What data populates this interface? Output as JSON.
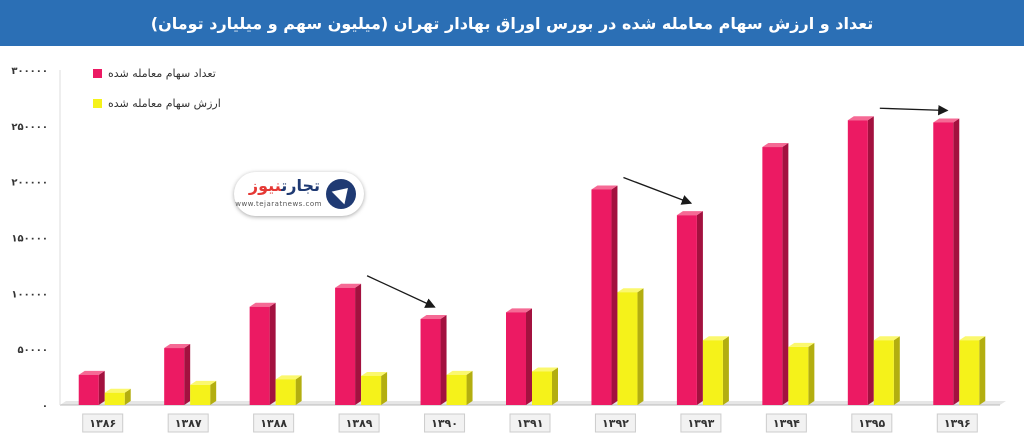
{
  "title": "تعداد و ارزش سهام معامله شده در بورس اوراق بهادار تهران (میلیون سهم و میلیارد تومان)",
  "logo": {
    "name_main": "تجارت",
    "name_accent": "نیوز",
    "url": "www.tejaratnews.com"
  },
  "colors": {
    "title_bar": "#2b6fb5",
    "series1": "#ec1a63",
    "series1_side": "#a3113f",
    "series2": "#f5f21a",
    "series2_side": "#b3ae10"
  },
  "chart_data": {
    "type": "bar",
    "title": "تعداد و ارزش سهام معامله شده در بورس اوراق بهادار تهران (میلیون سهم و میلیارد تومان)",
    "xlabel": "",
    "ylabel": "",
    "ylim": [
      0,
      300000
    ],
    "y_ticks": [
      0,
      50000,
      100000,
      150000,
      200000,
      250000,
      300000
    ],
    "y_tick_labels": [
      "۰",
      "۵۰۰۰۰",
      "۱۰۰۰۰۰",
      "۱۵۰۰۰۰",
      "۲۰۰۰۰۰",
      "۲۵۰۰۰۰",
      "۳۰۰۰۰۰"
    ],
    "categories": [
      "۱۳۸۶",
      "۱۳۸۷",
      "۱۳۸۸",
      "۱۳۸۹",
      "۱۳۹۰",
      "۱۳۹۱",
      "۱۳۹۲",
      "۱۳۹۳",
      "۱۳۹۴",
      "۱۳۹۵",
      "۱۳۹۶"
    ],
    "series": [
      {
        "name": "تعداد سهام معامله شده",
        "values": [
          27000,
          51000,
          88000,
          105000,
          77000,
          83000,
          193000,
          170000,
          231000,
          255000,
          253000
        ]
      },
      {
        "name": "ارزش سهام معامله شده",
        "values": [
          11000,
          18000,
          23000,
          26000,
          27000,
          30000,
          101000,
          58000,
          52000,
          58000,
          58000
        ]
      }
    ],
    "annotations": [
      {
        "type": "arrow",
        "from_category": "۱۳۸۹",
        "to_category": "۱۳۹۰"
      },
      {
        "type": "arrow",
        "from_category": "۱۳۹۲",
        "to_category": "۱۳۹۳"
      },
      {
        "type": "arrow",
        "from_category": "۱۳۹۵",
        "to_category": "۱۳۹۶"
      }
    ],
    "grid": false,
    "legend": "top-left"
  }
}
